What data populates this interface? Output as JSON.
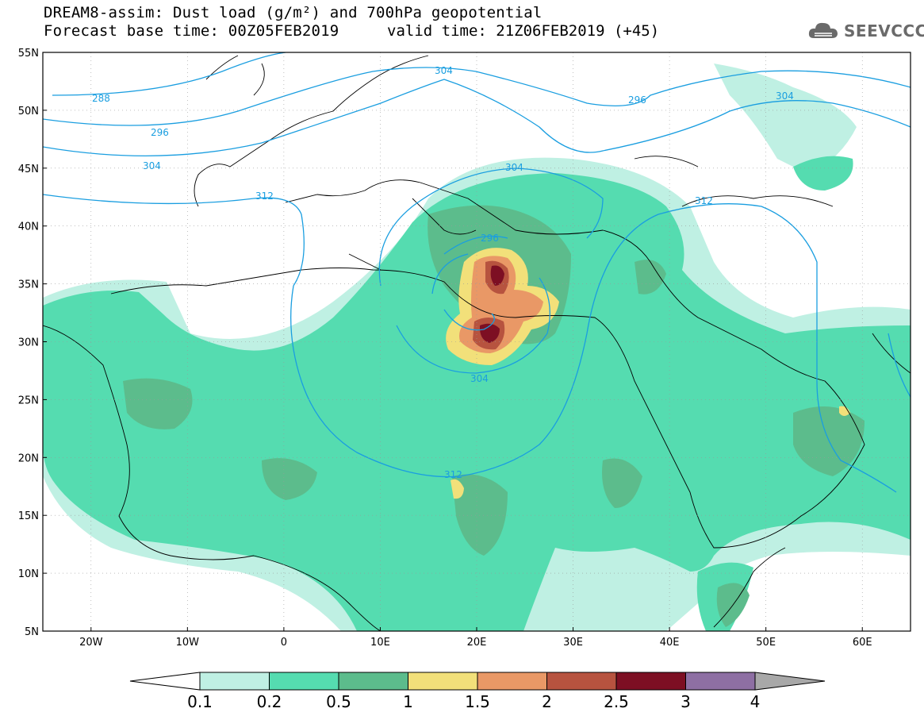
{
  "header": {
    "title_line1": "DREAM8-assim: Dust load (g/m²) and 700hPa geopotential",
    "title_line2": "Forecast base time: 00Z05FEB2019",
    "valid_time": "valid time: 21Z06FEB2019 (+45)",
    "logo_text": "SEEVCCC",
    "logo_icon": "cloud-logo-icon"
  },
  "map": {
    "lat_labels": [
      "55N",
      "50N",
      "45N",
      "40N",
      "35N",
      "30N",
      "25N",
      "20N",
      "15N",
      "10N",
      "5N"
    ],
    "lon_labels": [
      "20W",
      "10W",
      "0",
      "10E",
      "20E",
      "30E",
      "40E",
      "50E",
      "60E"
    ],
    "lon_range": [
      -25,
      65
    ],
    "lat_range": [
      5,
      55
    ],
    "contour_labels": [
      "288",
      "296",
      "304",
      "312",
      "296",
      "304",
      "304",
      "312",
      "312",
      "296",
      "304",
      "304"
    ]
  },
  "colorbar": {
    "ticks": [
      "0.1",
      "0.2",
      "0.5",
      "1",
      "1.5",
      "2",
      "2.5",
      "3",
      "4"
    ],
    "colors": [
      "#bff0e3",
      "#55dcb0",
      "#5cbc8c",
      "#f2e07a",
      "#e99866",
      "#b7533f",
      "#7d0f23",
      "#8e6fa3",
      "#a8a8a8"
    ]
  }
}
